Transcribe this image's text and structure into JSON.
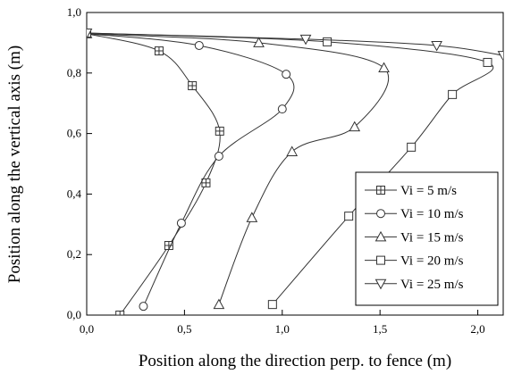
{
  "chart_data": {
    "type": "line",
    "x_label": "Position along the direction perp. to fence (m)",
    "y_label": "Position along the vertical axis (m)",
    "xlim": [
      0,
      2.13
    ],
    "ylim": [
      0,
      1.0
    ],
    "xticks": [
      {
        "value": 0,
        "label": "0,0"
      },
      {
        "value": 0.5,
        "label": "0,5"
      },
      {
        "value": 1.0,
        "label": "1,0"
      },
      {
        "value": 1.5,
        "label": "1,5"
      },
      {
        "value": 2.0,
        "label": "2,0"
      }
    ],
    "yticks": [
      {
        "value": 0,
        "label": "0,0"
      },
      {
        "value": 0.2,
        "label": "0,2"
      },
      {
        "value": 0.4,
        "label": "0,4"
      },
      {
        "value": 0.6,
        "label": "0,6"
      },
      {
        "value": 0.8,
        "label": "0,8"
      },
      {
        "value": 1.0,
        "label": "1,0"
      }
    ],
    "series": [
      {
        "name": "Vi = 5 m/s",
        "color": "#333333",
        "marker": "square-cross",
        "x": [
          0,
          0.37,
          0.54,
          0.68,
          0.61,
          0.42,
          0.17
        ],
        "y": [
          0.93,
          0.873,
          0.758,
          0.608,
          0.437,
          0.23,
          0
        ]
      },
      {
        "name": "Vi = 10 m/s",
        "color": "#333333",
        "marker": "circle",
        "x": [
          0,
          0.575,
          1.02,
          1.0,
          0.676,
          0.484,
          0.29
        ],
        "y": [
          0.93,
          0.891,
          0.796,
          0.681,
          0.525,
          0.304,
          0.029
        ]
      },
      {
        "name": "Vi = 15 m/s",
        "color": "#333333",
        "marker": "triangle-up",
        "x": [
          0,
          0.88,
          1.52,
          1.37,
          1.05,
          0.845,
          0.676
        ],
        "y": [
          0.93,
          0.9,
          0.817,
          0.622,
          0.54,
          0.322,
          0.035
        ]
      },
      {
        "name": "Vi = 20 m/s",
        "color": "#333333",
        "marker": "square",
        "x": [
          0,
          1.23,
          2.05,
          1.87,
          1.66,
          1.34,
          0.95
        ],
        "y": [
          0.932,
          0.903,
          0.835,
          0.729,
          0.555,
          0.327,
          0.035
        ]
      },
      {
        "name": "Vi = 25 m/s",
        "color": "#333333",
        "marker": "triangle-down",
        "x": [
          0,
          1.12,
          1.79,
          2.13
        ],
        "y": [
          0.932,
          0.912,
          0.891,
          0.858
        ]
      }
    ]
  }
}
